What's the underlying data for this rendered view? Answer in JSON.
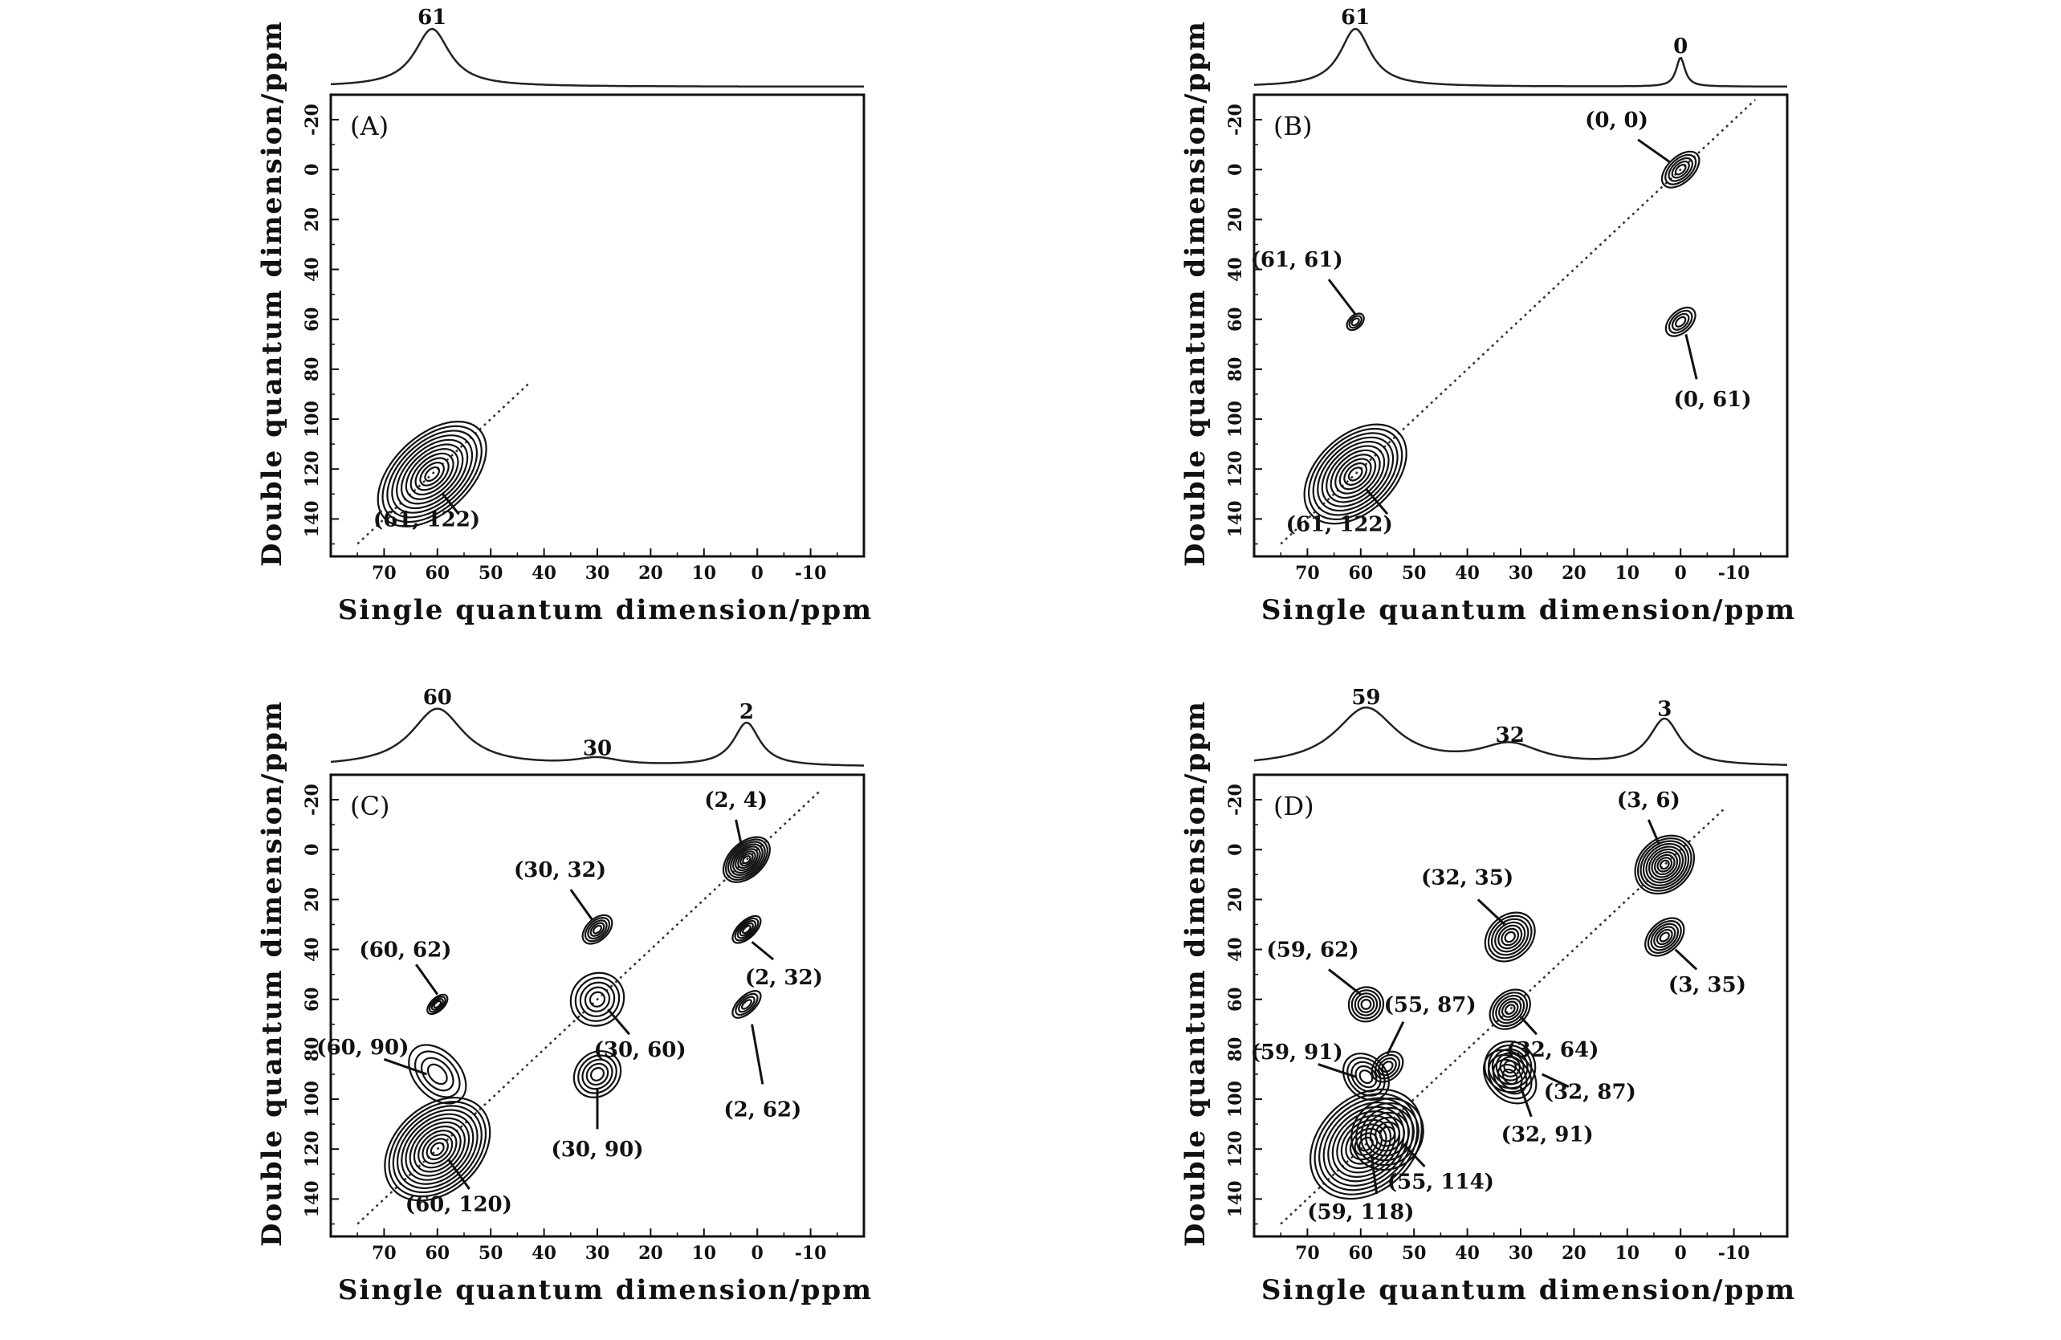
{
  "figure": {
    "xlabel": "Single quantum dimension/ppm",
    "ylabel": "Double quantum dimension/ppm"
  },
  "chart_data": [
    {
      "type": "contour",
      "panel": "(A)",
      "xlabel": "Single quantum dimension/ppm",
      "ylabel": "Double quantum dimension/ppm",
      "xlim": [
        80,
        -20
      ],
      "ylim": [
        -30,
        155
      ],
      "x_ticks": [
        "70",
        "60",
        "50",
        "40",
        "30",
        "20",
        "10",
        "0",
        "-10"
      ],
      "y_ticks": [
        "-20",
        "0",
        "20",
        "40",
        "60",
        "80",
        "100",
        "120",
        "140"
      ],
      "diagonal": [
        [
          75,
          150
        ],
        [
          43,
          86
        ]
      ],
      "projection_peaks": [
        {
          "ppm": 61,
          "label": "61",
          "height": 1.0,
          "width": 4
        }
      ],
      "correlations": [
        {
          "x": 61,
          "y": 122,
          "label": "(61, 122)",
          "rx": 9,
          "ry": 26,
          "rings": 11,
          "label_pos": [
            62,
            140
          ],
          "leader": [
            [
              59,
              130
            ],
            [
              56,
              138
            ]
          ]
        }
      ]
    },
    {
      "type": "contour",
      "panel": "(B)",
      "xlabel": "Single quantum dimension/ppm",
      "ylabel": "Double quantum dimension/ppm",
      "xlim": [
        80,
        -20
      ],
      "ylim": [
        -30,
        155
      ],
      "x_ticks": [
        "70",
        "60",
        "50",
        "40",
        "30",
        "20",
        "10",
        "0",
        "-10"
      ],
      "y_ticks": [
        "-20",
        "0",
        "20",
        "40",
        "60",
        "80",
        "100",
        "120",
        "140"
      ],
      "diagonal": [
        [
          75,
          150
        ],
        [
          -14,
          -28
        ]
      ],
      "projection_peaks": [
        {
          "ppm": 61,
          "label": "61",
          "height": 1.0,
          "width": 3.5
        },
        {
          "ppm": 0,
          "label": "0",
          "height": 0.5,
          "width": 1.0
        }
      ],
      "correlations": [
        {
          "x": 61,
          "y": 122,
          "label": "(61, 122)",
          "rx": 9,
          "ry": 24,
          "rings": 11,
          "label_pos": [
            64,
            142
          ],
          "leader": [
            [
              59,
              128
            ],
            [
              55,
              138
            ]
          ]
        },
        {
          "x": 0,
          "y": 0,
          "label": "(0, 0)",
          "rx": 3,
          "ry": 9,
          "rings": 5,
          "label_pos": [
            12,
            -20
          ],
          "leader": [
            [
              8,
              -12
            ],
            [
              2,
              -3
            ]
          ]
        },
        {
          "x": 61,
          "y": 61,
          "label": "(61, 61)",
          "rx": 1.5,
          "ry": 4,
          "rings": 3,
          "label_pos": [
            72,
            36
          ],
          "leader": [
            [
              66,
              44
            ],
            [
              61,
              58
            ]
          ]
        },
        {
          "x": 0,
          "y": 61,
          "label": "(0, 61)",
          "rx": 2.5,
          "ry": 7,
          "rings": 4,
          "label_pos": [
            -6,
            92
          ],
          "leader": [
            [
              -3,
              84
            ],
            [
              -1,
              66
            ]
          ]
        }
      ]
    },
    {
      "type": "contour",
      "panel": "(C)",
      "xlabel": "Single quantum dimension/ppm",
      "ylabel": "Double quantum dimension/ppm",
      "xlim": [
        80,
        -20
      ],
      "ylim": [
        -30,
        155
      ],
      "x_ticks": [
        "70",
        "60",
        "50",
        "40",
        "30",
        "20",
        "10",
        "0",
        "-10"
      ],
      "y_ticks": [
        "-20",
        "0",
        "20",
        "40",
        "60",
        "80",
        "100",
        "120",
        "140"
      ],
      "diagonal": [
        [
          75,
          150
        ],
        [
          -12,
          -24
        ]
      ],
      "projection_peaks": [
        {
          "ppm": 60,
          "label": "60",
          "height": 1.0,
          "width": 6
        },
        {
          "ppm": 30,
          "label": "30",
          "height": 0.12,
          "width": 5
        },
        {
          "ppm": 2,
          "label": "2",
          "height": 0.75,
          "width": 3
        }
      ],
      "correlations": [
        {
          "x": 60,
          "y": 120,
          "label": "(60, 120)",
          "rx": 10,
          "ry": 24,
          "rings": 12,
          "label_pos": [
            56,
            142
          ],
          "leader": [
            [
              58,
              124
            ],
            [
              54,
              136
            ]
          ]
        },
        {
          "x": 2,
          "y": 4,
          "label": "(2, 4)",
          "rx": 4,
          "ry": 11,
          "rings": 9,
          "label_pos": [
            4,
            -20
          ],
          "leader": [
            [
              4,
              -12
            ],
            [
              3,
              -2
            ]
          ]
        },
        {
          "x": 30,
          "y": 32,
          "label": "(30, 32)",
          "rx": 2.5,
          "ry": 7,
          "rings": 5,
          "label_pos": [
            37,
            8
          ],
          "leader": [
            [
              35,
              16
            ],
            [
              31,
              28
            ]
          ]
        },
        {
          "x": 60,
          "y": 62,
          "label": "(60, 62)",
          "rx": 1.5,
          "ry": 5,
          "rings": 4,
          "label_pos": [
            66,
            40
          ],
          "leader": [
            [
              64,
              46
            ],
            [
              60,
              58
            ]
          ]
        },
        {
          "x": 2,
          "y": 32,
          "label": "(2, 32)",
          "rx": 2,
          "ry": 7,
          "rings": 5,
          "label_pos": [
            -5,
            51
          ],
          "leader": [
            [
              1,
              37
            ],
            [
              -3,
              44
            ]
          ]
        },
        {
          "x": 30,
          "y": 60,
          "label": "(30, 60)",
          "rx": 6,
          "ry": 11,
          "rings": 5,
          "label_pos": [
            22,
            80
          ],
          "leader": [
            [
              28,
              64
            ],
            [
              24,
              74
            ]
          ]
        },
        {
          "x": 2,
          "y": 62,
          "label": "(2, 62)",
          "rx": 2,
          "ry": 7,
          "rings": 4,
          "label_pos": [
            -1,
            104
          ],
          "leader": [
            [
              1,
              70
            ],
            [
              -1,
              94
            ]
          ]
        },
        {
          "x": 60,
          "y": 90,
          "label": "(60, 90)",
          "rx": 8,
          "ry": 9,
          "rings": 4,
          "label_pos": [
            74,
            79
          ],
          "leader": [
            [
              70,
              84
            ],
            [
              62,
              90
            ]
          ]
        },
        {
          "x": 30,
          "y": 90,
          "label": "(30, 90)",
          "rx": 5,
          "ry": 10,
          "rings": 5,
          "label_pos": [
            30,
            120
          ],
          "leader": [
            [
              30,
              96
            ],
            [
              30,
              112
            ]
          ]
        }
      ]
    },
    {
      "type": "contour",
      "panel": "(D)",
      "xlabel": "Single quantum dimension/ppm",
      "ylabel": "Double quantum dimension/ppm",
      "xlim": [
        80,
        -20
      ],
      "ylim": [
        -30,
        155
      ],
      "x_ticks": [
        "70",
        "60",
        "50",
        "40",
        "30",
        "20",
        "10",
        "0",
        "-10"
      ],
      "y_ticks": [
        "-20",
        "0",
        "20",
        "40",
        "60",
        "80",
        "100",
        "120",
        "140"
      ],
      "diagonal": [
        [
          75,
          150
        ],
        [
          -8,
          -16
        ]
      ],
      "projection_peaks": [
        {
          "ppm": 59,
          "label": "59",
          "height": 1.0,
          "width": 7
        },
        {
          "ppm": 32,
          "label": "32",
          "height": 0.35,
          "width": 7
        },
        {
          "ppm": 3,
          "label": "3",
          "height": 0.8,
          "width": 3.5
        }
      ],
      "correlations": [
        {
          "x": 59,
          "y": 118,
          "label": "(59, 118)",
          "rx": 11,
          "ry": 25,
          "rings": 12,
          "label_pos": [
            60,
            145
          ],
          "leader": [
            [
              58,
              122
            ],
            [
              57,
              138
            ]
          ]
        },
        {
          "x": 3,
          "y": 6,
          "label": "(3, 6)",
          "rx": 6,
          "ry": 13,
          "rings": 10,
          "label_pos": [
            6,
            -20
          ],
          "leader": [
            [
              6,
              -12
            ],
            [
              4,
              -2
            ]
          ]
        },
        {
          "x": 32,
          "y": 35,
          "label": "(32, 35)",
          "rx": 5,
          "ry": 11,
          "rings": 7,
          "label_pos": [
            40,
            11
          ],
          "leader": [
            [
              38,
              20
            ],
            [
              33,
              30
            ]
          ]
        },
        {
          "x": 59,
          "y": 62,
          "label": "(59, 62)",
          "rx": 4,
          "ry": 7,
          "rings": 5,
          "label_pos": [
            69,
            40
          ],
          "leader": [
            [
              66,
              48
            ],
            [
              60,
              58
            ]
          ]
        },
        {
          "x": 3,
          "y": 35,
          "label": "(3, 35)",
          "rx": 3.5,
          "ry": 9,
          "rings": 6,
          "label_pos": [
            -5,
            54
          ],
          "leader": [
            [
              1,
              40
            ],
            [
              -3,
              48
            ]
          ]
        },
        {
          "x": 55,
          "y": 87,
          "label": "(55, 87)",
          "rx": 3,
          "ry": 7,
          "rings": 4,
          "label_pos": [
            47,
            62
          ],
          "leader": [
            [
              52,
              69
            ],
            [
              55,
              82
            ]
          ]
        },
        {
          "x": 32,
          "y": 64,
          "label": "(32, 64)",
          "rx": 4,
          "ry": 9,
          "rings": 6,
          "label_pos": [
            24,
            80
          ],
          "leader": [
            [
              30,
              67
            ],
            [
              27,
              74
            ]
          ]
        },
        {
          "x": 59,
          "y": 91,
          "label": "(59, 91)",
          "rx": 6,
          "ry": 8,
          "rings": 5,
          "label_pos": [
            72,
            81
          ],
          "leader": [
            [
              68,
              86
            ],
            [
              61,
              91
            ]
          ]
        },
        {
          "x": 32,
          "y": 87,
          "label": "(32, 87)",
          "rx": 6,
          "ry": 10,
          "rings": 6,
          "label_pos": [
            17,
            97
          ],
          "leader": [
            [
              26,
              90
            ],
            [
              21,
              95
            ]
          ]
        },
        {
          "x": 32,
          "y": 91,
          "label": "(32, 91)",
          "rx": 7,
          "ry": 9,
          "rings": 5,
          "label_pos": [
            25,
            114
          ],
          "leader": [
            [
              30,
              95
            ],
            [
              28,
              107
            ]
          ]
        },
        {
          "x": 55,
          "y": 114,
          "label": "(55, 114)",
          "rx": 8,
          "ry": 15,
          "rings": 7,
          "label_pos": [
            45,
            133
          ],
          "leader": [
            [
              52,
              118
            ],
            [
              48,
              127
            ]
          ]
        }
      ]
    }
  ]
}
